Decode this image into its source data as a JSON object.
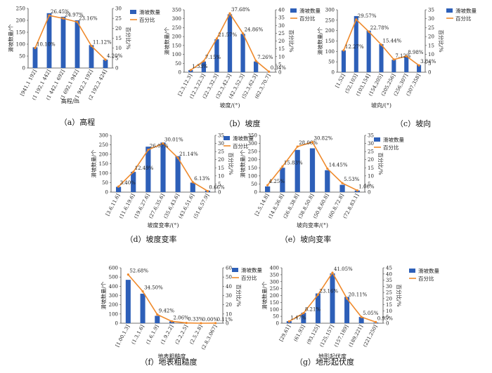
{
  "labels": {
    "left_axis": "滑坡数量/个",
    "right_axis": "百分比/%",
    "legend_bar": "滑坡数量",
    "legend_line": "百分比"
  },
  "colors": {
    "bar": "#2d5fb8",
    "line": "#ef8a2c"
  },
  "chart_data": [
    {
      "type": "bar",
      "caption": "（a）高程",
      "xlabel": "高程/m",
      "categories": [
        "[941,1 192]",
        "(1 192,1 442]",
        "(1 442,1 692]",
        "(1 692,1 942]",
        "(1 942,2 192]",
        "(2 192,2 424]"
      ],
      "counts": [
        87,
        230,
        215,
        200,
        96,
        35
      ],
      "percents": [
        10.1,
        26.45,
        24.97,
        23.16,
        11.12,
        4.2
      ],
      "percent_labels": [
        "10.10%",
        "26.45%",
        "24.97%",
        "23.16%",
        "11.12%",
        "4.20%"
      ],
      "left_ticks": [
        0,
        50,
        100,
        150,
        200,
        250
      ],
      "right_ticks": [
        0,
        5,
        10,
        15,
        20,
        25,
        30
      ],
      "ylim_left": [
        0,
        250
      ],
      "ylim_right": [
        0,
        30
      ]
    },
    {
      "type": "bar",
      "caption": "（b）坡度",
      "xlabel": "坡度/(°)",
      "categories": [
        "[2.3,12.3]",
        "(12.3,22.3]",
        "(22.3,32.3]",
        "(32.3,42.3]",
        "(42.3,52.3]",
        "(52.3,62.3]",
        "(62.3,70.7]"
      ],
      "counts": [
        12,
        60,
        185,
        325,
        215,
        60,
        2
      ],
      "percents": [
        1.33,
        7.15,
        21.57,
        37.68,
        24.86,
        7.26,
        0.34
      ],
      "percent_labels": [
        "1.33%",
        "7.15%",
        "21.57%",
        "37.68%",
        "24.86%",
        "7.26%",
        "0.34%"
      ],
      "left_ticks": [
        0,
        50,
        100,
        150,
        200,
        250,
        300,
        350
      ],
      "right_ticks": [
        0,
        5,
        10,
        15,
        20,
        25,
        30,
        35,
        40
      ],
      "ylim_left": [
        0,
        350
      ],
      "ylim_right": [
        0,
        40
      ]
    },
    {
      "type": "bar",
      "caption": "（c）坡向",
      "xlabel": "坡向/(°)",
      "categories": [
        "[1,52]",
        "(52,103]",
        "(103,154]",
        "(154,205]",
        "(205,256]",
        "(256,307]",
        "(307,358]"
      ],
      "counts": [
        105,
        270,
        200,
        135,
        60,
        75,
        35
      ],
      "percents": [
        12.27,
        29.57,
        22.78,
        15.44,
        7.12,
        8.98,
        3.84
      ],
      "percent_labels": [
        "12.27%",
        "29.57%",
        "22.78%",
        "15.44%",
        "7.12%",
        "8.98%",
        "3.84%"
      ],
      "left_ticks": [
        0,
        50,
        100,
        150,
        200,
        250,
        300
      ],
      "right_ticks": [
        0,
        5,
        10,
        15,
        20,
        25,
        30,
        35
      ],
      "ylim_left": [
        0,
        300
      ],
      "ylim_right": [
        0,
        35
      ]
    },
    {
      "type": "bar",
      "caption": "（d）坡度变率",
      "xlabel": "坡度变率/(°)",
      "categories": [
        "[3.6,11.6]",
        "(11.6,19.6]",
        "(19.6,27.6]",
        "(27.6,35.6]",
        "(35.6,43.6]",
        "(43.6,51.6]",
        "(51.6,57.9]"
      ],
      "counts": [
        28,
        107,
        240,
        262,
        190,
        50,
        8
      ],
      "percents": [
        3.4,
        12.49,
        26.07,
        30.01,
        21.14,
        6.13,
        0.66
      ],
      "percent_labels": [
        "3.40%",
        "12.49%",
        "26.07%",
        "30.01%",
        "21.14%",
        "6.13%",
        "0.66%"
      ],
      "left_ticks": [
        0,
        50,
        100,
        150,
        200,
        250,
        300
      ],
      "right_ticks": [
        0,
        5,
        10,
        15,
        20,
        25,
        30,
        35
      ],
      "ylim_left": [
        0,
        300
      ],
      "ylim_right": [
        0,
        35
      ]
    },
    {
      "type": "bar",
      "caption": "（e）坡向变率",
      "xlabel": "坡向变率/(°)",
      "categories": [
        "[2.5,14.8]",
        "(14.8,26.8]",
        "(26.8,38.8]",
        "(38.8,50.8]",
        "(50.8,60.8]",
        "(60.8,72.8]",
        "(72.8,83.1]"
      ],
      "counts": [
        35,
        150,
        260,
        270,
        135,
        45,
        10
      ],
      "percents": [
        4.25,
        15.83,
        28.06,
        30.82,
        14.45,
        5.53,
        1.06
      ],
      "percent_labels": [
        "4.25%",
        "15.83%",
        "28.06%",
        "30.82%",
        "14.45%",
        "5.53%",
        "1.06%"
      ],
      "left_ticks": [
        0,
        50,
        100,
        150,
        200,
        250,
        300,
        350
      ],
      "right_ticks": [
        0,
        5,
        10,
        15,
        20,
        25,
        30,
        35
      ],
      "ylim_left": [
        0,
        350
      ],
      "ylim_right": [
        0,
        35
      ]
    },
    {
      "type": "bar",
      "caption": "（f）地表粗糙度",
      "xlabel": "地表粗糙度",
      "categories": [
        "[1.00,1.3]",
        "(1.3,1.6]",
        "(1.6,1.9]",
        "(1.9,2.2]",
        "(2.2,2.5]",
        "(2.5,2.8]",
        "(2.8,3.067]"
      ],
      "counts": [
        470,
        320,
        80,
        20,
        3,
        1,
        1
      ],
      "percents": [
        52.68,
        34.5,
        9.42,
        2.06,
        0.33,
        0.0,
        0.11
      ],
      "percent_labels": [
        "52.68%",
        "34.50%",
        "9.42%",
        "2.06%",
        "0.33%",
        "0.00%",
        "0.11%"
      ],
      "left_ticks": [
        0,
        100,
        200,
        300,
        400,
        500,
        600
      ],
      "right_ticks": [
        0,
        10,
        20,
        30,
        40,
        50,
        60
      ],
      "ylim_left": [
        0,
        600
      ],
      "ylim_right": [
        0,
        60
      ]
    },
    {
      "type": "bar",
      "caption": "（g）地形起伏度",
      "xlabel": "地形起伏度",
      "categories": [
        "[29,61]",
        "(61,93]",
        "(93,125]",
        "(125,157]",
        "(157,189]",
        "(189,221]",
        "(221,250]"
      ],
      "counts": [
        15,
        75,
        215,
        360,
        190,
        45,
        5
      ],
      "percents": [
        1.47,
        8.21,
        23.16,
        41.05,
        20.11,
        5.05,
        0.95
      ],
      "percent_labels": [
        "1.47%",
        "8.21%",
        "23.16%",
        "41.05%",
        "20.11%",
        "5.05%",
        "0.95%"
      ],
      "left_ticks": [
        0,
        50,
        100,
        150,
        200,
        250,
        300,
        350,
        400
      ],
      "right_ticks": [
        0,
        5,
        10,
        15,
        20,
        25,
        30,
        35,
        40,
        45
      ],
      "ylim_left": [
        0,
        400
      ],
      "ylim_right": [
        0,
        45
      ]
    }
  ]
}
